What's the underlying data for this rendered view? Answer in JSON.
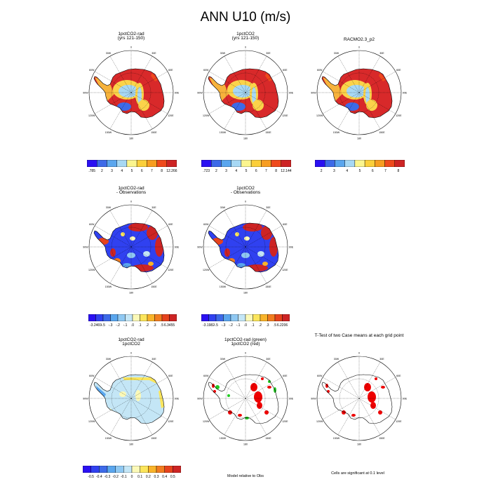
{
  "title": "ANN U10 (m/s)",
  "panels": [
    {
      "id": "p1",
      "title": [
        "1pctCO2-rad",
        "(yrs 121-150)"
      ],
      "kind": "abs"
    },
    {
      "id": "p2",
      "title": [
        "1pctCO2",
        "(yrs 121-150)"
      ],
      "kind": "abs"
    },
    {
      "id": "p3",
      "title": [
        "RACMO2.3_p2"
      ],
      "kind": "abs"
    },
    {
      "id": "p4",
      "title": [
        "1pctCO2-rad",
        "- Observations"
      ],
      "kind": "bias"
    },
    {
      "id": "p5",
      "title": [
        "1pctCO2",
        "- Observations"
      ],
      "kind": "bias"
    },
    {
      "id": "p6",
      "title": [
        "1pctCO2-rad",
        "1pctCO2"
      ],
      "kind": "diff"
    },
    {
      "id": "p7",
      "title": [
        "1pctCO2-rad (green)",
        "1pctCO2 (red)"
      ],
      "kind": "sig2"
    },
    {
      "id": "p8",
      "title": [
        "T-Test of two Case means at each grid point"
      ],
      "kind": "sig1"
    }
  ],
  "longitude_labels": [
    "0",
    "30E",
    "60E",
    "90E",
    "120E",
    "150E",
    "180",
    "150W",
    "120W",
    "90W",
    "60W",
    "30W"
  ],
  "colorbars": [
    {
      "id": "cb1",
      "labels": [
        ".785",
        "2",
        "3",
        "4",
        "5",
        "6",
        "7",
        "8",
        "12.266"
      ],
      "colors": [
        "#2a10f2",
        "#3d6ae8",
        "#5aa6ee",
        "#a7d8f4",
        "#fbf58e",
        "#fbcf3a",
        "#f79d20",
        "#ef4a1c",
        "#cd2424"
      ]
    },
    {
      "id": "cb2",
      "labels": [
        ".723",
        "2",
        "3",
        "4",
        "5",
        "6",
        "7",
        "8",
        "12.144"
      ],
      "colors": [
        "#2a10f2",
        "#3d6ae8",
        "#5aa6ee",
        "#a7d8f4",
        "#fbf58e",
        "#fbcf3a",
        "#f79d20",
        "#ef4a1c",
        "#cd2424"
      ]
    },
    {
      "id": "cb3",
      "labels": [
        "2",
        "3",
        "4",
        "5",
        "6",
        "7",
        "8"
      ],
      "colors": [
        "#2a10f2",
        "#3d6ae8",
        "#5aa6ee",
        "#a7d8f4",
        "#fbf58e",
        "#fbcf3a",
        "#f79d20",
        "#ef4a1c",
        "#cd2424"
      ]
    },
    {
      "id": "cb4",
      "labels": [
        "-3.2469",
        "-.5",
        "-.3",
        "-.2",
        "-.1",
        ".0",
        ".1",
        ".2",
        ".3",
        ".5",
        "6.3455"
      ],
      "colors": [
        "#2a10f2",
        "#3041f0",
        "#3d6ae8",
        "#5aa6ee",
        "#8fc8f2",
        "#c4e6f6",
        "#fbf9b8",
        "#fbe55b",
        "#f9b42a",
        "#f27d20",
        "#e6431d",
        "#cd2424"
      ]
    },
    {
      "id": "cb5",
      "labels": [
        "-3.1982",
        "-.5",
        "-.3",
        "-.2",
        "-.1",
        ".0",
        ".1",
        ".2",
        ".3",
        ".5",
        "6.2206"
      ],
      "colors": [
        "#2a10f2",
        "#3041f0",
        "#3d6ae8",
        "#5aa6ee",
        "#8fc8f2",
        "#c4e6f6",
        "#fbf9b8",
        "#fbe55b",
        "#f9b42a",
        "#f27d20",
        "#e6431d",
        "#cd2424"
      ]
    },
    {
      "id": "cb6",
      "labels": [
        "-0.5",
        "-0.4",
        "-0.3",
        "-0.2",
        "-0.1",
        "0",
        "0.1",
        "0.2",
        "0.3",
        "0.4",
        "0.5"
      ],
      "colors": [
        "#2a10f2",
        "#3041f0",
        "#3d6ae8",
        "#5aa6ee",
        "#8fc8f2",
        "#c4e6f6",
        "#fbf9b8",
        "#fbe55b",
        "#f9b42a",
        "#f27d20",
        "#e6431d",
        "#cd2424"
      ]
    }
  ],
  "notes": {
    "model_relative": "Model relative to Obs",
    "cells_significant": "Cells are significant at 0.1 level"
  },
  "colors": {
    "sig_red": "#ee0000",
    "sig_green": "#22cc22",
    "outline": "#000000"
  }
}
